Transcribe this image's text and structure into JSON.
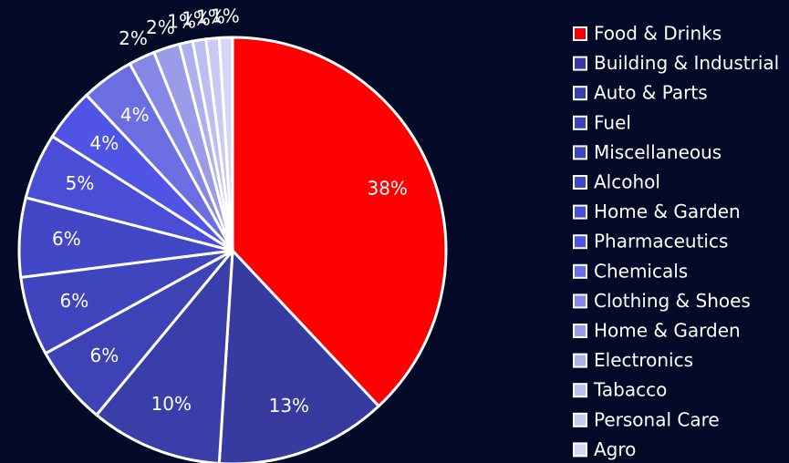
{
  "chart_data": {
    "type": "pie",
    "categories": [
      "Food & Drinks",
      "Building & Industrial",
      "Auto & Parts",
      "Fuel",
      "Miscellaneous",
      "Alcohol",
      "Home & Garden",
      "Pharmaceutics",
      "Chemicals",
      "Clothing & Shoes",
      "Home & Garden",
      "Electronics",
      "Tabacco",
      "Personal Care",
      "Agro"
    ],
    "values": [
      38,
      13,
      10,
      6,
      6,
      6,
      5,
      4,
      4,
      2,
      2,
      1,
      1,
      1,
      1
    ],
    "value_labels": [
      "38%",
      "13%",
      "10%",
      "6%",
      "6%",
      "6%",
      "5%",
      "4%",
      "4%",
      "2%",
      "2%",
      "1%",
      "1%",
      "1%",
      "1%"
    ],
    "colors": [
      "#ff0000",
      "#373a9e",
      "#3a3ea8",
      "#3d42b4",
      "#4044bd",
      "#4347c6",
      "#4a4ed6",
      "#5054e4",
      "#6b6ee0",
      "#8587e6",
      "#9a9ce8",
      "#aeb0ee",
      "#bcbdf0",
      "#c9caf3",
      "#d6d7f6"
    ],
    "legend": "right"
  }
}
